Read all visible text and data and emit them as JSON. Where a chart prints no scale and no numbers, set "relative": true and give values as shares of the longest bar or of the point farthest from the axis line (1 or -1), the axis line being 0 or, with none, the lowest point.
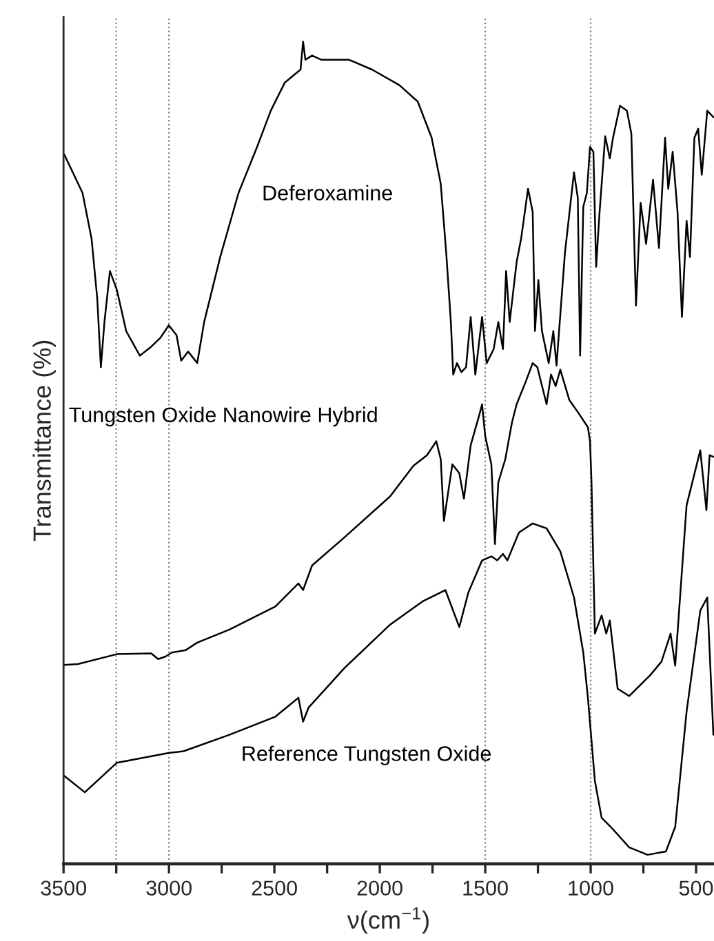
{
  "chart_data": {
    "type": "line",
    "relative": true,
    "xlabel": "ν(cm$^{−1}$)",
    "ylabel": "Transmittance (%)",
    "xlim": [
      3500,
      415
    ],
    "xticks": [
      3500,
      {
        "value": 3250,
        "label": null
      },
      3000,
      {
        "value": 2750,
        "label": null
      },
      2500,
      {
        "value": 2250,
        "label": null
      },
      2000,
      {
        "value": 1750,
        "label": null
      },
      1500,
      {
        "value": 1250,
        "label": null
      },
      1000,
      {
        "value": 750,
        "label": null
      },
      500
    ],
    "grid": false,
    "legend": false,
    "marker": "none",
    "line_style": "solid",
    "ref_lines": [
      {
        "axis": "x",
        "value": 3250,
        "color": "#808080",
        "line_style": "dotted"
      },
      {
        "axis": "x",
        "value": 3000,
        "color": "#808080",
        "line_style": "dotted"
      },
      {
        "axis": "x",
        "value": 1500,
        "color": "#808080",
        "line_style": "dotted"
      },
      {
        "axis": "x",
        "value": 1000,
        "color": "#808080",
        "line_style": "dotted"
      }
    ],
    "series": [
      {
        "name": "Deferoxamine",
        "color": "#000000",
        "x": [
          3497,
          3410,
          3367,
          3340,
          3323,
          3306,
          3280,
          3247,
          3203,
          3138,
          3084,
          3040,
          3001,
          2964,
          2942,
          2909,
          2866,
          2833,
          2757,
          2670,
          2582,
          2517,
          2451,
          2376,
          2364,
          2353,
          2321,
          2278,
          2147,
          2037,
          1907,
          1820,
          1754,
          1711,
          1685,
          1663,
          1652,
          1634,
          1613,
          1591,
          1569,
          1547,
          1515,
          1493,
          1460,
          1438,
          1416,
          1401,
          1384,
          1351,
          1330,
          1297,
          1275,
          1264,
          1248,
          1231,
          1199,
          1177,
          1162,
          1122,
          1079,
          1061,
          1050,
          1035,
          1018,
          1003,
          987,
          974,
          959,
          931,
          909,
          894,
          861,
          828,
          807,
          785,
          763,
          737,
          704,
          676,
          647,
          632,
          611,
          588,
          567,
          545,
          529,
          508,
          490,
          473,
          447,
          418
        ],
        "values": [
          0.863,
          0.816,
          0.76,
          0.687,
          0.604,
          0.659,
          0.721,
          0.698,
          0.648,
          0.618,
          0.629,
          0.64,
          0.655,
          0.643,
          0.612,
          0.623,
          0.609,
          0.659,
          0.738,
          0.816,
          0.872,
          0.916,
          0.95,
          0.966,
          1.0,
          0.978,
          0.983,
          0.978,
          0.978,
          0.966,
          0.947,
          0.927,
          0.883,
          0.827,
          0.743,
          0.659,
          0.595,
          0.609,
          0.598,
          0.604,
          0.665,
          0.595,
          0.665,
          0.609,
          0.626,
          0.659,
          0.626,
          0.721,
          0.659,
          0.732,
          0.76,
          0.821,
          0.793,
          0.648,
          0.71,
          0.648,
          0.609,
          0.648,
          0.606,
          0.743,
          0.841,
          0.81,
          0.618,
          0.799,
          0.816,
          0.872,
          0.866,
          0.726,
          0.788,
          0.885,
          0.858,
          0.883,
          0.922,
          0.916,
          0.888,
          0.679,
          0.804,
          0.754,
          0.832,
          0.749,
          0.883,
          0.821,
          0.866,
          0.793,
          0.665,
          0.782,
          0.738,
          0.883,
          0.894,
          0.838,
          0.916,
          0.908
        ]
      },
      {
        "name": "Tungsten Oxide Nanowire Hybrid",
        "color": "#000000",
        "x": [
          3497,
          3432,
          3247,
          3084,
          3051,
          3018,
          2986,
          2920,
          2866,
          2713,
          2495,
          2386,
          2364,
          2321,
          2168,
          1951,
          1841,
          1776,
          1732,
          1711,
          1696,
          1656,
          1623,
          1601,
          1569,
          1526,
          1515,
          1500,
          1471,
          1454,
          1438,
          1405,
          1373,
          1351,
          1307,
          1275,
          1253,
          1209,
          1188,
          1166,
          1144,
          1101,
          1057,
          1013,
          1003,
          996,
          980,
          948,
          926,
          909,
          872,
          817,
          763,
          719,
          664,
          621,
          599,
          545,
          480,
          451,
          436,
          418
        ],
        "values": [
          0.242,
          0.243,
          0.255,
          0.256,
          0.249,
          0.252,
          0.257,
          0.26,
          0.269,
          0.285,
          0.313,
          0.341,
          0.333,
          0.363,
          0.397,
          0.447,
          0.484,
          0.497,
          0.514,
          0.492,
          0.417,
          0.486,
          0.475,
          0.444,
          0.509,
          0.548,
          0.559,
          0.52,
          0.486,
          0.389,
          0.464,
          0.492,
          0.537,
          0.559,
          0.587,
          0.609,
          0.604,
          0.559,
          0.595,
          0.581,
          0.601,
          0.564,
          0.548,
          0.531,
          0.514,
          0.464,
          0.28,
          0.302,
          0.28,
          0.296,
          0.213,
          0.204,
          0.218,
          0.229,
          0.246,
          0.28,
          0.241,
          0.436,
          0.503,
          0.43,
          0.497,
          0.495
        ]
      },
      {
        "name": "Reference Tungsten Oxide",
        "color": "#000000",
        "x": [
          3497,
          3399,
          3247,
          2997,
          2931,
          2713,
          2495,
          2386,
          2364,
          2338,
          2168,
          1951,
          1798,
          1689,
          1623,
          1580,
          1515,
          1471,
          1443,
          1416,
          1395,
          1340,
          1275,
          1209,
          1144,
          1079,
          1035,
          1013,
          980,
          948,
          905,
          817,
          730,
          643,
          599,
          545,
          480,
          447,
          418
        ],
        "values": [
          0.107,
          0.087,
          0.123,
          0.135,
          0.137,
          0.157,
          0.179,
          0.202,
          0.173,
          0.19,
          0.238,
          0.291,
          0.319,
          0.333,
          0.288,
          0.33,
          0.369,
          0.374,
          0.369,
          0.377,
          0.369,
          0.403,
          0.414,
          0.408,
          0.38,
          0.324,
          0.257,
          0.202,
          0.101,
          0.056,
          0.045,
          0.02,
          0.011,
          0.015,
          0.045,
          0.185,
          0.308,
          0.324,
          0.157
        ]
      }
    ]
  }
}
